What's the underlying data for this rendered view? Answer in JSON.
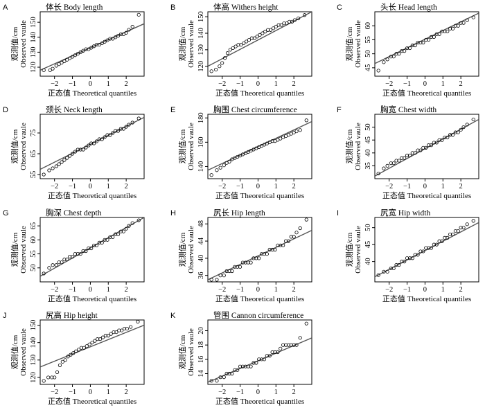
{
  "figure": {
    "xlabel": "正态值 Theoretical quantiles",
    "ylabel_cn": "观测值/cm",
    "ylabel_en": "Observed vaule"
  },
  "colors": {
    "axis": "#000000",
    "reference_line": "#555555",
    "points": "#000000"
  },
  "chart_data": [
    {
      "id": "A",
      "letter": "A",
      "title": "体长 Body length",
      "type": "scatter",
      "xlim": [
        -2.8,
        3.0
      ],
      "xticks": [
        -2,
        -1,
        0,
        1,
        2
      ],
      "ylim": [
        114,
        157
      ],
      "yticks": [
        120,
        130,
        140,
        150
      ],
      "ref_line": {
        "x": [
          -2.8,
          3.0
        ],
        "y": [
          118,
          149
        ]
      },
      "points": {
        "x": [
          -2.6,
          -2.25,
          -2.1,
          -1.9,
          -1.75,
          -1.6,
          -1.45,
          -1.3,
          -1.15,
          -1.0,
          -0.85,
          -0.7,
          -0.55,
          -0.4,
          -0.25,
          -0.1,
          0.05,
          0.2,
          0.35,
          0.5,
          0.65,
          0.8,
          0.95,
          1.1,
          1.25,
          1.4,
          1.55,
          1.7,
          1.85,
          2.0,
          2.15,
          2.35,
          2.7
        ],
        "y": [
          118,
          118,
          119,
          121,
          122,
          123,
          124,
          125,
          126,
          127,
          128,
          129,
          130,
          131,
          132,
          132,
          133,
          134,
          135,
          135,
          136,
          137,
          138,
          139,
          139,
          140,
          141,
          142,
          142,
          143,
          145,
          147,
          155
        ]
      }
    },
    {
      "id": "B",
      "letter": "B",
      "title": "体高 Withers height",
      "type": "scatter",
      "xlim": [
        -2.8,
        3.0
      ],
      "xticks": [
        -2,
        -1,
        0,
        1,
        2
      ],
      "ylim": [
        114,
        153
      ],
      "yticks": [
        120,
        130,
        140,
        150
      ],
      "ref_line": {
        "x": [
          -2.8,
          3.0
        ],
        "y": [
          120,
          153
        ]
      },
      "points": {
        "x": [
          -2.6,
          -2.35,
          -2.15,
          -2.0,
          -1.85,
          -1.7,
          -1.55,
          -1.4,
          -1.25,
          -1.1,
          -0.95,
          -0.8,
          -0.65,
          -0.5,
          -0.35,
          -0.2,
          -0.05,
          0.1,
          0.25,
          0.4,
          0.55,
          0.7,
          0.85,
          1.0,
          1.15,
          1.3,
          1.45,
          1.6,
          1.75,
          1.9,
          2.05,
          2.25,
          2.6
        ],
        "y": [
          117,
          118,
          120,
          122,
          125,
          128,
          130,
          131,
          132,
          133,
          133,
          134,
          135,
          136,
          137,
          137,
          138,
          139,
          140,
          141,
          142,
          142,
          143,
          144,
          145,
          145,
          146,
          146,
          147,
          147,
          148,
          149,
          151
        ]
      }
    },
    {
      "id": "C",
      "letter": "C",
      "title": "头长 Head length",
      "type": "scatter",
      "xlim": [
        -2.8,
        3.0
      ],
      "xticks": [
        -2,
        -1,
        0,
        1,
        2
      ],
      "ylim": [
        42,
        65
      ],
      "yticks": [
        45,
        50,
        55,
        60
      ],
      "ref_line": {
        "x": [
          -2.8,
          3.0
        ],
        "y": [
          46.5,
          64.5
        ]
      },
      "points": {
        "x": [
          -2.6,
          -2.3,
          -2.1,
          -1.9,
          -1.75,
          -1.6,
          -1.45,
          -1.3,
          -1.15,
          -1.0,
          -0.85,
          -0.7,
          -0.55,
          -0.4,
          -0.25,
          -0.1,
          0.05,
          0.2,
          0.35,
          0.5,
          0.65,
          0.8,
          0.95,
          1.1,
          1.25,
          1.4,
          1.55,
          1.7,
          1.85,
          2.0,
          2.15,
          2.35,
          2.7
        ],
        "y": [
          44,
          47,
          48,
          49,
          49,
          50,
          50,
          51,
          51,
          52,
          52,
          53,
          53,
          54,
          54,
          54,
          55,
          55,
          56,
          56,
          57,
          57,
          58,
          58,
          58,
          59,
          59,
          60,
          60,
          61,
          61,
          62,
          63
        ]
      }
    },
    {
      "id": "D",
      "letter": "D",
      "title": "颈长 Neck length",
      "type": "scatter",
      "xlim": [
        -2.8,
        3.0
      ],
      "xticks": [
        -2,
        -1,
        0,
        1,
        2
      ],
      "ylim": [
        53,
        84
      ],
      "yticks": [
        55,
        65,
        75
      ],
      "ref_line": {
        "x": [
          -2.8,
          3.0
        ],
        "y": [
          57.5,
          82.5
        ]
      },
      "points": {
        "x": [
          -2.6,
          -2.3,
          -2.1,
          -1.9,
          -1.75,
          -1.6,
          -1.45,
          -1.3,
          -1.15,
          -1.0,
          -0.85,
          -0.7,
          -0.55,
          -0.4,
          -0.25,
          -0.1,
          0.05,
          0.2,
          0.35,
          0.5,
          0.65,
          0.8,
          0.95,
          1.1,
          1.25,
          1.4,
          1.55,
          1.7,
          1.85,
          2.0,
          2.15,
          2.35,
          2.7
        ],
        "y": [
          55,
          57,
          58,
          59,
          60,
          61,
          62,
          63,
          64,
          65,
          66,
          67,
          67,
          67,
          68,
          69,
          70,
          70,
          71,
          72,
          72,
          73,
          74,
          74,
          75,
          76,
          76,
          77,
          77,
          78,
          79,
          80,
          82
        ]
      }
    },
    {
      "id": "E",
      "letter": "E",
      "title": "胸围 Chest circumference",
      "type": "scatter",
      "xlim": [
        -2.8,
        3.0
      ],
      "xticks": [
        -2,
        -1,
        0,
        1,
        2
      ],
      "ylim": [
        130,
        183
      ],
      "yticks": [
        140,
        160,
        180
      ],
      "ref_line": {
        "x": [
          -2.8,
          3.0
        ],
        "y": [
          137,
          177
        ]
      },
      "points": {
        "x": [
          -2.6,
          -2.3,
          -2.1,
          -1.9,
          -1.75,
          -1.6,
          -1.45,
          -1.3,
          -1.15,
          -1.0,
          -0.85,
          -0.7,
          -0.55,
          -0.4,
          -0.25,
          -0.1,
          0.05,
          0.2,
          0.35,
          0.5,
          0.65,
          0.8,
          0.95,
          1.1,
          1.25,
          1.4,
          1.55,
          1.7,
          1.85,
          2.0,
          2.15,
          2.35,
          2.7
        ],
        "y": [
          133,
          137,
          139,
          141,
          143,
          144,
          146,
          147,
          148,
          149,
          150,
          151,
          152,
          153,
          154,
          155,
          156,
          157,
          158,
          159,
          160,
          161,
          161,
          162,
          163,
          164,
          165,
          166,
          167,
          168,
          169,
          170,
          178
        ]
      }
    },
    {
      "id": "F",
      "letter": "F",
      "title": "胸宽 Chest width",
      "type": "scatter",
      "xlim": [
        -2.8,
        3.0
      ],
      "xticks": [
        -2,
        -1,
        0,
        1,
        2
      ],
      "ylim": [
        30,
        55
      ],
      "yticks": [
        35,
        40,
        45,
        50
      ],
      "ref_line": {
        "x": [
          -2.8,
          3.0
        ],
        "y": [
          31,
          53
        ]
      },
      "points": {
        "x": [
          -2.6,
          -2.3,
          -2.1,
          -1.9,
          -1.75,
          -1.6,
          -1.45,
          -1.3,
          -1.15,
          -1.0,
          -0.85,
          -0.7,
          -0.55,
          -0.4,
          -0.25,
          -0.1,
          0.05,
          0.2,
          0.35,
          0.5,
          0.65,
          0.8,
          0.95,
          1.1,
          1.25,
          1.4,
          1.55,
          1.7,
          1.85,
          2.0,
          2.15,
          2.35,
          2.7
        ],
        "y": [
          32,
          34,
          35,
          36,
          36,
          37,
          37,
          38,
          38,
          39,
          39,
          40,
          40,
          41,
          41,
          42,
          42,
          43,
          43,
          44,
          44,
          45,
          45,
          46,
          46,
          47,
          47,
          48,
          48,
          49,
          50,
          51,
          53
        ]
      }
    },
    {
      "id": "G",
      "letter": "G",
      "title": "胸深 Chest depth",
      "type": "scatter",
      "xlim": [
        -2.8,
        3.0
      ],
      "xticks": [
        -2,
        -1,
        0,
        1,
        2
      ],
      "ylim": [
        45,
        68
      ],
      "yticks": [
        50,
        55,
        60,
        65
      ],
      "ref_line": {
        "x": [
          -2.8,
          3.0
        ],
        "y": [
          47,
          68
        ]
      },
      "points": {
        "x": [
          -2.6,
          -2.3,
          -2.1,
          -1.9,
          -1.75,
          -1.6,
          -1.45,
          -1.3,
          -1.15,
          -1.0,
          -0.85,
          -0.7,
          -0.55,
          -0.4,
          -0.25,
          -0.1,
          0.05,
          0.2,
          0.35,
          0.5,
          0.65,
          0.8,
          0.95,
          1.1,
          1.25,
          1.4,
          1.55,
          1.7,
          1.85,
          2.0,
          2.15,
          2.35,
          2.7
        ],
        "y": [
          48,
          50,
          51,
          51,
          52,
          52,
          53,
          53,
          54,
          54,
          55,
          55,
          55,
          56,
          56,
          57,
          57,
          58,
          58,
          59,
          59,
          60,
          60,
          61,
          61,
          62,
          62,
          63,
          63,
          64,
          65,
          66,
          67
        ]
      }
    },
    {
      "id": "H",
      "letter": "H",
      "title": "尻长 Hip length",
      "type": "scatter",
      "xlim": [
        -2.8,
        3.0
      ],
      "xticks": [
        -2,
        -1,
        0,
        1,
        2
      ],
      "ylim": [
        34.5,
        49.5
      ],
      "yticks": [
        36,
        40,
        44,
        48
      ],
      "ref_line": {
        "x": [
          -2.8,
          3.0
        ],
        "y": [
          35,
          46.5
        ]
      },
      "points": {
        "x": [
          -2.6,
          -2.3,
          -2.1,
          -1.9,
          -1.75,
          -1.6,
          -1.45,
          -1.3,
          -1.15,
          -1.0,
          -0.85,
          -0.7,
          -0.55,
          -0.4,
          -0.25,
          -0.1,
          0.05,
          0.2,
          0.35,
          0.5,
          0.65,
          0.8,
          0.95,
          1.1,
          1.25,
          1.4,
          1.55,
          1.7,
          1.85,
          2.0,
          2.15,
          2.35,
          2.7
        ],
        "y": [
          35,
          35,
          36,
          36,
          37,
          37,
          37,
          38,
          38,
          38,
          39,
          39,
          39,
          39,
          40,
          40,
          40,
          41,
          41,
          41,
          42,
          42,
          42,
          43,
          43,
          43,
          44,
          44,
          45,
          45,
          46,
          47,
          49
        ]
      }
    },
    {
      "id": "I",
      "letter": "I",
      "title": "尻宽 Hip width",
      "type": "scatter",
      "xlim": [
        -2.8,
        3.0
      ],
      "xticks": [
        -2,
        -1,
        0,
        1,
        2
      ],
      "ylim": [
        34,
        53
      ],
      "yticks": [
        40,
        45,
        50
      ],
      "ref_line": {
        "x": [
          -2.8,
          3.0
        ],
        "y": [
          35.5,
          51.5
        ]
      },
      "points": {
        "x": [
          -2.6,
          -2.3,
          -2.1,
          -1.9,
          -1.75,
          -1.6,
          -1.45,
          -1.3,
          -1.15,
          -1.0,
          -0.85,
          -0.7,
          -0.55,
          -0.4,
          -0.25,
          -0.1,
          0.05,
          0.2,
          0.35,
          0.5,
          0.65,
          0.8,
          0.95,
          1.1,
          1.25,
          1.4,
          1.55,
          1.7,
          1.85,
          2.0,
          2.15,
          2.35,
          2.7
        ],
        "y": [
          36,
          37,
          37,
          38,
          38,
          39,
          39,
          40,
          40,
          41,
          41,
          41,
          42,
          42,
          43,
          43,
          44,
          44,
          44,
          45,
          45,
          46,
          46,
          47,
          47,
          48,
          48,
          49,
          49,
          50,
          50,
          51,
          52
        ]
      }
    },
    {
      "id": "J",
      "letter": "J",
      "title": "尻高 Hip height",
      "type": "scatter",
      "xlim": [
        -2.8,
        3.0
      ],
      "xticks": [
        -2,
        -1,
        0,
        1,
        2
      ],
      "ylim": [
        116,
        153
      ],
      "yticks": [
        120,
        130,
        140,
        150
      ],
      "ref_line": {
        "x": [
          -2.8,
          3.0
        ],
        "y": [
          126,
          150
        ]
      },
      "points": {
        "x": [
          -2.6,
          -2.35,
          -2.15,
          -2.0,
          -1.85,
          -1.7,
          -1.55,
          -1.4,
          -1.25,
          -1.1,
          -0.95,
          -0.8,
          -0.65,
          -0.5,
          -0.35,
          -0.2,
          -0.05,
          0.1,
          0.25,
          0.4,
          0.55,
          0.7,
          0.85,
          1.0,
          1.15,
          1.3,
          1.45,
          1.6,
          1.75,
          1.9,
          2.05,
          2.25,
          2.65
        ],
        "y": [
          118,
          120,
          120,
          120,
          123,
          127,
          129,
          130,
          132,
          133,
          134,
          135,
          136,
          137,
          137,
          138,
          139,
          140,
          141,
          142,
          142,
          143,
          144,
          144,
          145,
          146,
          146,
          147,
          147,
          148,
          148,
          149,
          152
        ]
      }
    },
    {
      "id": "K",
      "letter": "K",
      "title": "管围 Cannon circumference",
      "type": "scatter",
      "xlim": [
        -2.8,
        3.0
      ],
      "xticks": [
        -2,
        -1,
        0,
        1,
        2
      ],
      "ylim": [
        12.5,
        21.5
      ],
      "yticks": [
        14,
        16,
        18,
        20
      ],
      "ref_line": {
        "x": [
          -2.8,
          3.0
        ],
        "y": [
          12.8,
          19.0
        ]
      },
      "points": {
        "x": [
          -2.6,
          -2.3,
          -2.1,
          -1.9,
          -1.75,
          -1.6,
          -1.45,
          -1.3,
          -1.15,
          -1.0,
          -0.85,
          -0.7,
          -0.55,
          -0.4,
          -0.25,
          -0.1,
          0.05,
          0.2,
          0.35,
          0.5,
          0.65,
          0.8,
          0.95,
          1.1,
          1.25,
          1.4,
          1.55,
          1.7,
          1.85,
          2.0,
          2.15,
          2.35,
          2.7
        ],
        "y": [
          13,
          13,
          13.5,
          13.5,
          14,
          14,
          14,
          14.5,
          14.5,
          15,
          15,
          15,
          15,
          15,
          15.5,
          15.5,
          16,
          16,
          16,
          16.5,
          16.5,
          17,
          17,
          17,
          17.5,
          18,
          18,
          18,
          18,
          18,
          18,
          19,
          21
        ]
      }
    }
  ]
}
